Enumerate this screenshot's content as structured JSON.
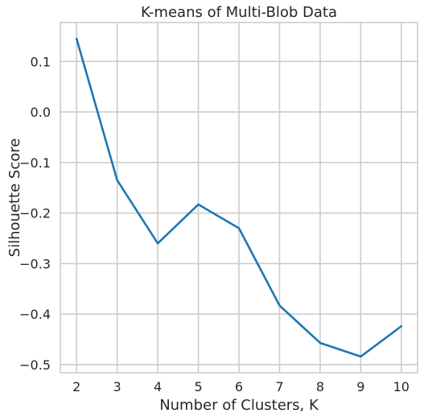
{
  "chart_data": {
    "type": "line",
    "title": "K-means of Multi-Blob Data",
    "xlabel": "Number of Clusters, K",
    "ylabel": "Silhouette Score",
    "x": [
      2,
      3,
      4,
      5,
      6,
      7,
      8,
      9,
      10
    ],
    "series": [
      {
        "values": [
          0.145,
          -0.135,
          -0.26,
          -0.183,
          -0.23,
          -0.383,
          -0.457,
          -0.484,
          -0.424
        ],
        "color": "#1f77b4"
      }
    ],
    "xlim": [
      1.6,
      10.4
    ],
    "ylim": [
      -0.516,
      0.177
    ],
    "x_ticks": [
      2,
      3,
      4,
      5,
      6,
      7,
      8,
      9,
      10
    ],
    "x_tick_labels": [
      "2",
      "3",
      "4",
      "5",
      "6",
      "7",
      "8",
      "9",
      "10"
    ],
    "y_ticks": [
      0.1,
      0.0,
      -0.1,
      -0.2,
      -0.3,
      -0.4,
      -0.5
    ],
    "y_tick_labels": [
      "0.1",
      "0.0",
      "−0.1",
      "−0.2",
      "−0.3",
      "−0.4",
      "−0.5"
    ],
    "grid": true,
    "grid_color": "#cccccc",
    "axes_frame_color": "#cccccc"
  }
}
